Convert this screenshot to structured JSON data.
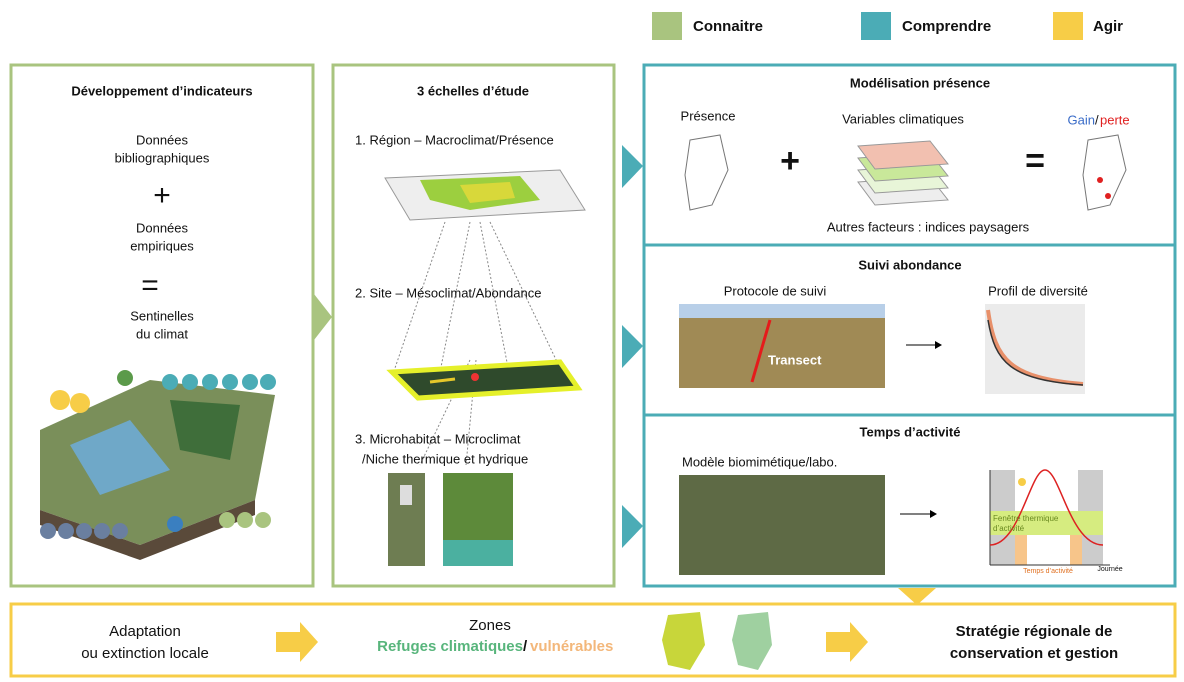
{
  "legend": [
    "Connaitre",
    "Comprendre",
    "Agir"
  ],
  "indicators": {
    "title": "Développement d’indicateurs",
    "lines": [
      "Données",
      "bibliographiques",
      "+",
      "Données",
      "empiriques",
      "=",
      "Sentinelles",
      "du climat"
    ]
  },
  "scales": {
    "title": "3 échelles d’étude",
    "items": [
      "1. Région – Macroclimat/Présence",
      "2. Site – Mésoclimat/Abondance",
      "3. Microhabitat – Microclimat",
      "/Niche thermique et hydrique"
    ]
  },
  "modelling": {
    "title": "Modélisation présence",
    "presence": "Présence",
    "plus": "+",
    "variables": "Variables climatiques",
    "equals": "=",
    "gain": "Gain",
    "slash": "/",
    "loss": "perte",
    "other": "Autres facteurs : indices paysagers"
  },
  "abundance": {
    "title": "Suivi abondance",
    "protocol": "Protocole de suivi",
    "transect": "Transect",
    "profile": "Profil de diversité"
  },
  "activity": {
    "title": "Temps d’activité",
    "model": "Modèle biomimétique/labo.",
    "window": [
      "Fenêtre thermique",
      "d’activité"
    ],
    "time": "Temps d’activité",
    "day": "Journée"
  },
  "bottom": {
    "adaptation": [
      "Adaptation",
      "ou extinction locale"
    ],
    "zones": "Zones",
    "refuges": "Refuges climatiques",
    "slash": "/",
    "vulnerable": "vulnérables",
    "strategy": [
      "Stratégie régionale de",
      "conservation et gestion"
    ]
  }
}
